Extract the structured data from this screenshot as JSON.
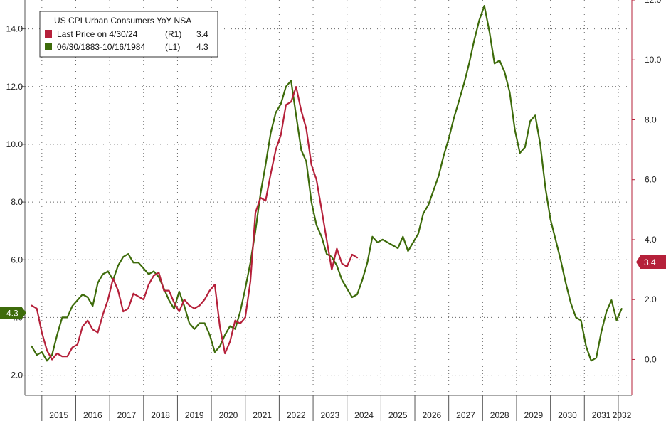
{
  "chart_data": {
    "type": "line",
    "title": "US CPI Urban Consumers YoY NSA",
    "x_ticks": [
      "2015",
      "2016",
      "2017",
      "2018",
      "2019",
      "2020",
      "2021",
      "2022",
      "2023",
      "2024",
      "2025",
      "2026",
      "2027",
      "2028",
      "2029",
      "2030",
      "2031",
      "2032"
    ],
    "y_left": {
      "ticks": [
        "2.0",
        "4.0",
        "6.0",
        "8.0",
        "10.0",
        "12.0",
        "14.0"
      ],
      "range": [
        1.3,
        15.0
      ]
    },
    "y_right": {
      "ticks": [
        "0.0",
        "2.0",
        "4.0",
        "6.0",
        "8.0",
        "10.0",
        "12.0"
      ],
      "range": [
        -1.2,
        12.0
      ]
    },
    "grid": true,
    "legend_position": "top-left",
    "series": [
      {
        "name": "Last Price on 4/30/24",
        "axis": "right",
        "axis_code": "(R1)",
        "last_value": "3.4",
        "color": "#b5203a",
        "x": [
          2014.7,
          2014.85,
          2015.0,
          2015.15,
          2015.3,
          2015.45,
          2015.6,
          2015.75,
          2015.9,
          2016.05,
          2016.2,
          2016.35,
          2016.5,
          2016.65,
          2016.8,
          2016.95,
          2017.1,
          2017.25,
          2017.4,
          2017.55,
          2017.7,
          2017.85,
          2018.0,
          2018.15,
          2018.3,
          2018.45,
          2018.6,
          2018.75,
          2018.9,
          2019.05,
          2019.2,
          2019.35,
          2019.5,
          2019.65,
          2019.8,
          2019.95,
          2020.1,
          2020.25,
          2020.4,
          2020.55,
          2020.7,
          2020.85,
          2021.0,
          2021.15,
          2021.3,
          2021.45,
          2021.6,
          2021.75,
          2021.9,
          2022.05,
          2022.2,
          2022.35,
          2022.5,
          2022.65,
          2022.8,
          2022.95,
          2023.1,
          2023.25,
          2023.4,
          2023.55,
          2023.7,
          2023.85,
          2024.0,
          2024.15,
          2024.3
        ],
        "values": [
          1.8,
          1.7,
          0.9,
          0.3,
          0.0,
          0.2,
          0.1,
          0.1,
          0.4,
          0.5,
          1.1,
          1.3,
          1.0,
          0.9,
          1.5,
          2.0,
          2.7,
          2.3,
          1.6,
          1.7,
          2.2,
          2.1,
          2.0,
          2.5,
          2.8,
          2.9,
          2.3,
          2.3,
          1.9,
          1.6,
          2.0,
          1.8,
          1.7,
          1.8,
          2.0,
          2.3,
          2.5,
          1.1,
          0.2,
          0.6,
          1.3,
          1.2,
          1.4,
          2.6,
          4.9,
          5.4,
          5.3,
          6.2,
          7.0,
          7.5,
          8.5,
          8.6,
          9.1,
          8.3,
          7.7,
          6.5,
          6.0,
          5.0,
          4.0,
          3.0,
          3.7,
          3.2,
          3.1,
          3.5,
          3.4
        ]
      },
      {
        "name": "06/30/1883-10/16/1984",
        "axis": "left",
        "axis_code": "(L1)",
        "last_value": "4.3",
        "color": "#3d6b0a",
        "x": [
          2014.7,
          2014.85,
          2015.0,
          2015.15,
          2015.3,
          2015.45,
          2015.6,
          2015.75,
          2015.9,
          2016.05,
          2016.2,
          2016.35,
          2016.5,
          2016.65,
          2016.8,
          2016.95,
          2017.1,
          2017.25,
          2017.4,
          2017.55,
          2017.7,
          2017.85,
          2018.0,
          2018.15,
          2018.3,
          2018.45,
          2018.6,
          2018.75,
          2018.9,
          2019.05,
          2019.2,
          2019.35,
          2019.5,
          2019.65,
          2019.8,
          2019.95,
          2020.1,
          2020.25,
          2020.4,
          2020.55,
          2020.7,
          2020.85,
          2021.0,
          2021.15,
          2021.3,
          2021.45,
          2021.6,
          2021.75,
          2021.9,
          2022.05,
          2022.2,
          2022.35,
          2022.5,
          2022.65,
          2022.8,
          2022.95,
          2023.1,
          2023.25,
          2023.4,
          2023.55,
          2023.7,
          2023.85,
          2024.0,
          2024.15,
          2024.3,
          2024.45,
          2024.6,
          2024.75,
          2024.9,
          2025.05,
          2025.2,
          2025.35,
          2025.5,
          2025.65,
          2025.8,
          2025.95,
          2026.1,
          2026.25,
          2026.4,
          2026.55,
          2026.7,
          2026.85,
          2027.0,
          2027.15,
          2027.3,
          2027.45,
          2027.6,
          2027.75,
          2027.9,
          2028.05,
          2028.2,
          2028.35,
          2028.5,
          2028.65,
          2028.8,
          2028.95,
          2029.1,
          2029.25,
          2029.4,
          2029.55,
          2029.7,
          2029.85,
          2030.0,
          2030.15,
          2030.3,
          2030.45,
          2030.6,
          2030.75,
          2030.9,
          2031.05,
          2031.2,
          2031.35,
          2031.5,
          2031.65,
          2031.8,
          2031.95,
          2032.1
        ],
        "values": [
          3.0,
          2.7,
          2.8,
          2.5,
          2.7,
          3.4,
          4.0,
          4.0,
          4.4,
          4.6,
          4.8,
          4.7,
          4.4,
          5.2,
          5.5,
          5.6,
          5.3,
          5.8,
          6.1,
          6.2,
          5.9,
          5.9,
          5.7,
          5.5,
          5.6,
          5.4,
          5.0,
          4.6,
          4.3,
          4.9,
          4.4,
          3.8,
          3.6,
          3.8,
          3.8,
          3.4,
          2.8,
          3.0,
          3.4,
          3.7,
          3.6,
          4.2,
          5.0,
          5.9,
          7.0,
          8.3,
          9.3,
          10.4,
          11.1,
          11.4,
          12.0,
          12.2,
          11.0,
          9.8,
          9.4,
          8.0,
          7.2,
          6.8,
          6.2,
          6.1,
          5.8,
          5.3,
          5.0,
          4.7,
          4.8,
          5.3,
          5.9,
          6.8,
          6.6,
          6.7,
          6.6,
          6.5,
          6.4,
          6.8,
          6.3,
          6.6,
          6.9,
          7.6,
          7.9,
          8.4,
          8.9,
          9.6,
          10.2,
          10.9,
          11.5,
          12.1,
          12.8,
          13.6,
          14.3,
          14.8,
          13.9,
          12.8,
          12.9,
          12.5,
          11.8,
          10.5,
          9.7,
          9.9,
          10.8,
          11.0,
          10.0,
          8.5,
          7.4,
          6.7,
          6.0,
          5.2,
          4.5,
          4.0,
          3.9,
          3.0,
          2.5,
          2.6,
          3.5,
          4.2,
          4.6,
          3.9,
          4.3
        ]
      }
    ]
  }
}
